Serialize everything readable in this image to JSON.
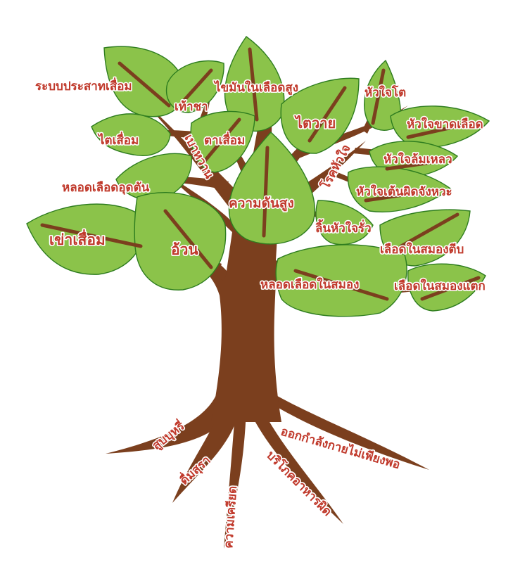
{
  "colors": {
    "trunk": "#7b3f1e",
    "leaf_fill": "#8bc34a",
    "leaf_stroke": "#2e7d1f",
    "label_fill": "#c0392b",
    "label_outline": "#ffffff"
  },
  "labels": {
    "rabop_prasat_suam": "ระบบประสาทเสื่อม",
    "thao_cha": "เท้าชา",
    "khaiman_nai_lueat_sung": "ไขมันในเลือดสูง",
    "hua_chai_to": "หัวใจโต",
    "tai_suam": "ไตเสื่อม",
    "baowan": "เบาหวาน",
    "ta_suam": "ตาเสื่อม",
    "tai_wai": "ไตวาย",
    "hua_chai_khat_lueat": "หัวใจขาดเลือด",
    "hua_chai_lom_leo": "หัวใจล้มเหลว",
    "rok_hua_chai": "โรคหัวใจ",
    "lot_lueat_ut_tan": "หลอดเลือดอุดตัน",
    "hua_chai_ten_phit_changwa": "หัวใจเต้นผิดจังหวะ",
    "khwam_dan_sung": "ความดันสูง",
    "lin_hua_chai_rua": "ลิ้นหัวใจรั่ว",
    "khao_suam": "เข่าเสื่อม",
    "uan": "อ้วน",
    "lueat_nai_samong_tip": "เลือดในสมองตีบ",
    "lot_lueat_nai_samong": "หลอดเลือดในสมอง",
    "lueat_nai_samong_taek": "เลือดในสมองแตก",
    "sup_buri": "สูบบุหรี่",
    "ok_kamlang_kai": "ออกกำลังกายไม่เพียงพอ",
    "duem_sura": "ดื่มสุรา",
    "boriphok_ahan_phit": "บริโภคอาหารผิด",
    "khwam_khriat": "ความเครียด"
  }
}
